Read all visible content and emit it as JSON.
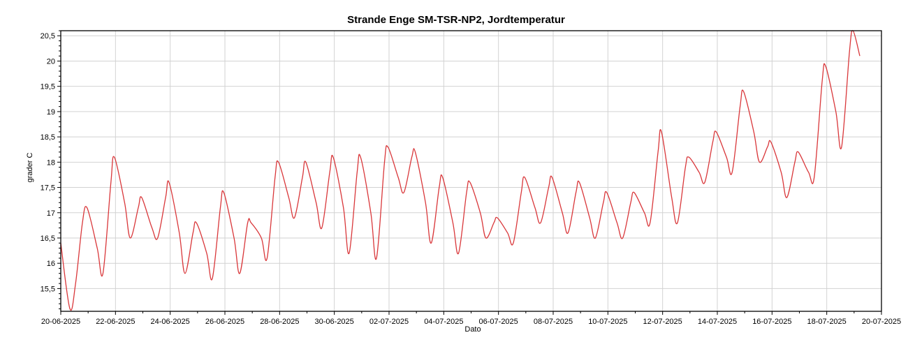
{
  "chart_data": {
    "type": "line",
    "title": "Strande Enge SM-TSR-NP2, Jordtemperatur",
    "xlabel": "Dato",
    "ylabel": "grader C",
    "xlim": [
      "2025-06-20",
      "2025-07-20"
    ],
    "ylim": [
      15.05,
      20.6
    ],
    "yticks": [
      "15,5",
      "16",
      "16,5",
      "17",
      "17,5",
      "18",
      "18,5",
      "19",
      "19,5",
      "20",
      "20,5"
    ],
    "xticks": [
      "20-06-2025",
      "22-06-2025",
      "24-06-2025",
      "26-06-2025",
      "28-06-2025",
      "30-06-2025",
      "02-07-2025",
      "04-07-2025",
      "06-07-2025",
      "08-07-2025",
      "10-07-2025",
      "12-07-2025",
      "14-07-2025",
      "16-07-2025",
      "18-07-2025",
      "20-07-2025"
    ],
    "grid": true,
    "line_color": "#d9373a",
    "series": [
      {
        "points": [
          [
            "2025-06-20 00:00",
            16.4
          ],
          [
            "2025-06-20 08:00",
            15.1
          ],
          [
            "2025-06-20 13:00",
            15.6
          ],
          [
            "2025-06-20 19:00",
            16.8
          ],
          [
            "2025-06-20 23:00",
            17.1
          ],
          [
            "2025-06-21 08:00",
            16.3
          ],
          [
            "2025-06-21 13:00",
            15.8
          ],
          [
            "2025-06-21 20:00",
            17.6
          ],
          [
            "2025-06-21 23:00",
            18.1
          ],
          [
            "2025-06-22 08:00",
            17.2
          ],
          [
            "2025-06-22 13:00",
            16.5
          ],
          [
            "2025-06-22 20:00",
            17.1
          ],
          [
            "2025-06-22 23:00",
            17.3
          ],
          [
            "2025-06-23 08:00",
            16.7
          ],
          [
            "2025-06-23 13:00",
            16.5
          ],
          [
            "2025-06-23 20:00",
            17.3
          ],
          [
            "2025-06-23 23:00",
            17.6
          ],
          [
            "2025-06-24 08:00",
            16.6
          ],
          [
            "2025-06-24 13:00",
            15.8
          ],
          [
            "2025-06-24 20:00",
            16.6
          ],
          [
            "2025-06-24 23:00",
            16.8
          ],
          [
            "2025-06-25 08:00",
            16.2
          ],
          [
            "2025-06-25 13:00",
            15.7
          ],
          [
            "2025-06-25 20:00",
            17.1
          ],
          [
            "2025-06-25 23:00",
            17.4
          ],
          [
            "2025-06-26 08:00",
            16.5
          ],
          [
            "2025-06-26 13:00",
            15.8
          ],
          [
            "2025-06-26 20:00",
            16.8
          ],
          [
            "2025-06-26 23:00",
            16.8
          ],
          [
            "2025-06-27 08:00",
            16.5
          ],
          [
            "2025-06-27 13:00",
            16.1
          ],
          [
            "2025-06-27 20:00",
            17.7
          ],
          [
            "2025-06-27 23:00",
            18.0
          ],
          [
            "2025-06-28 08:00",
            17.3
          ],
          [
            "2025-06-28 13:00",
            16.9
          ],
          [
            "2025-06-28 20:00",
            17.7
          ],
          [
            "2025-06-28 23:00",
            18.0
          ],
          [
            "2025-06-29 08:00",
            17.2
          ],
          [
            "2025-06-29 13:00",
            16.7
          ],
          [
            "2025-06-29 20:00",
            17.8
          ],
          [
            "2025-06-29 23:00",
            18.1
          ],
          [
            "2025-06-30 08:00",
            17.1
          ],
          [
            "2025-06-30 13:00",
            16.2
          ],
          [
            "2025-06-30 20:00",
            17.8
          ],
          [
            "2025-06-30 23:00",
            18.1
          ],
          [
            "2025-07-01 08:00",
            17.0
          ],
          [
            "2025-07-01 13:00",
            16.1
          ],
          [
            "2025-07-01 20:00",
            18.0
          ],
          [
            "2025-07-01 23:00",
            18.3
          ],
          [
            "2025-07-02 08:00",
            17.7
          ],
          [
            "2025-07-02 13:00",
            17.4
          ],
          [
            "2025-07-02 20:00",
            18.1
          ],
          [
            "2025-07-02 23:00",
            18.2
          ],
          [
            "2025-07-03 08:00",
            17.2
          ],
          [
            "2025-07-03 13:00",
            16.4
          ],
          [
            "2025-07-03 20:00",
            17.5
          ],
          [
            "2025-07-03 23:00",
            17.7
          ],
          [
            "2025-07-04 08:00",
            16.8
          ],
          [
            "2025-07-04 13:00",
            16.2
          ],
          [
            "2025-07-04 20:00",
            17.4
          ],
          [
            "2025-07-04 23:00",
            17.6
          ],
          [
            "2025-07-05 08:00",
            17.0
          ],
          [
            "2025-07-05 13:00",
            16.5
          ],
          [
            "2025-07-05 20:00",
            16.8
          ],
          [
            "2025-07-05 23:00",
            16.9
          ],
          [
            "2025-07-06 08:00",
            16.6
          ],
          [
            "2025-07-06 13:00",
            16.4
          ],
          [
            "2025-07-06 20:00",
            17.4
          ],
          [
            "2025-07-06 23:00",
            17.7
          ],
          [
            "2025-07-07 08:00",
            17.1
          ],
          [
            "2025-07-07 13:00",
            16.8
          ],
          [
            "2025-07-07 20:00",
            17.5
          ],
          [
            "2025-07-07 23:00",
            17.7
          ],
          [
            "2025-07-08 08:00",
            17.0
          ],
          [
            "2025-07-08 13:00",
            16.6
          ],
          [
            "2025-07-08 20:00",
            17.4
          ],
          [
            "2025-07-08 23:00",
            17.6
          ],
          [
            "2025-07-09 08:00",
            16.9
          ],
          [
            "2025-07-09 13:00",
            16.5
          ],
          [
            "2025-07-09 20:00",
            17.2
          ],
          [
            "2025-07-09 23:00",
            17.4
          ],
          [
            "2025-07-10 08:00",
            16.8
          ],
          [
            "2025-07-10 13:00",
            16.5
          ],
          [
            "2025-07-10 20:00",
            17.2
          ],
          [
            "2025-07-10 23:00",
            17.4
          ],
          [
            "2025-07-11 08:00",
            17.0
          ],
          [
            "2025-07-11 13:00",
            16.8
          ],
          [
            "2025-07-11 20:00",
            18.2
          ],
          [
            "2025-07-11 23:00",
            18.6
          ],
          [
            "2025-07-12 08:00",
            17.3
          ],
          [
            "2025-07-12 13:00",
            16.8
          ],
          [
            "2025-07-12 20:00",
            17.9
          ],
          [
            "2025-07-12 23:00",
            18.1
          ],
          [
            "2025-07-13 08:00",
            17.8
          ],
          [
            "2025-07-13 13:00",
            17.6
          ],
          [
            "2025-07-13 20:00",
            18.4
          ],
          [
            "2025-07-13 23:00",
            18.6
          ],
          [
            "2025-07-14 08:00",
            18.1
          ],
          [
            "2025-07-14 13:00",
            17.8
          ],
          [
            "2025-07-14 20:00",
            19.1
          ],
          [
            "2025-07-14 23:00",
            19.4
          ],
          [
            "2025-07-15 08:00",
            18.6
          ],
          [
            "2025-07-15 13:00",
            18.0
          ],
          [
            "2025-07-15 20:00",
            18.3
          ],
          [
            "2025-07-15 23:00",
            18.4
          ],
          [
            "2025-07-16 08:00",
            17.8
          ],
          [
            "2025-07-16 13:00",
            17.3
          ],
          [
            "2025-07-16 20:00",
            18.0
          ],
          [
            "2025-07-16 23:00",
            18.2
          ],
          [
            "2025-07-17 08:00",
            17.8
          ],
          [
            "2025-07-17 13:00",
            17.7
          ],
          [
            "2025-07-17 20:00",
            19.6
          ],
          [
            "2025-07-17 23:00",
            19.9
          ],
          [
            "2025-07-18 08:00",
            19.0
          ],
          [
            "2025-07-18 13:00",
            18.3
          ],
          [
            "2025-07-18 20:00",
            20.2
          ],
          [
            "2025-07-18 23:00",
            20.6
          ],
          [
            "2025-07-19 05:00",
            20.1
          ]
        ]
      }
    ]
  }
}
